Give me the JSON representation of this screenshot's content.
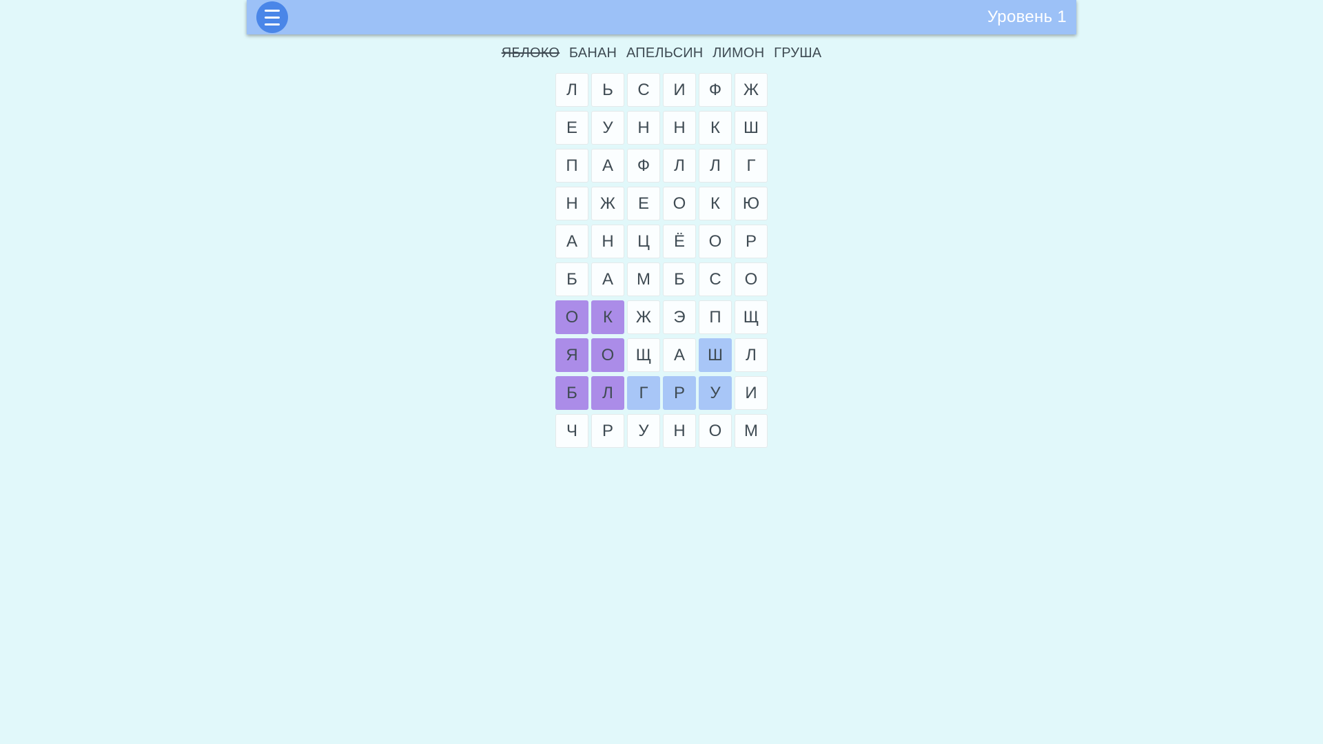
{
  "header": {
    "title": "Уровень 1",
    "menu_icon": "hamburger-icon"
  },
  "word_list": [
    {
      "text": "ЯБЛОКО",
      "found": true
    },
    {
      "text": "БАНАН",
      "found": false
    },
    {
      "text": "АПЕЛЬСИН",
      "found": false
    },
    {
      "text": "ЛИМОН",
      "found": false
    },
    {
      "text": "ГРУША",
      "found": false
    }
  ],
  "grid": {
    "rows": 10,
    "cols": 6,
    "cells": [
      [
        "Л",
        "Ь",
        "С",
        "И",
        "Ф",
        "Ж"
      ],
      [
        "Е",
        "У",
        "Н",
        "Н",
        "К",
        "Ш"
      ],
      [
        "П",
        "А",
        "Ф",
        "Л",
        "Л",
        "Г"
      ],
      [
        "Н",
        "Ж",
        "Е",
        "О",
        "К",
        "Ю"
      ],
      [
        "А",
        "Н",
        "Ц",
        "Ё",
        "О",
        "Р"
      ],
      [
        "Б",
        "А",
        "М",
        "Б",
        "С",
        "О"
      ],
      [
        "О",
        "К",
        "Ж",
        "Э",
        "П",
        "Щ"
      ],
      [
        "Я",
        "О",
        "Щ",
        "А",
        "Ш",
        "Л"
      ],
      [
        "Б",
        "Л",
        "Г",
        "Р",
        "У",
        "И"
      ],
      [
        "Ч",
        "Р",
        "У",
        "Н",
        "О",
        "М"
      ]
    ],
    "found_cells": [
      [
        6,
        0
      ],
      [
        6,
        1
      ],
      [
        7,
        0
      ],
      [
        7,
        1
      ],
      [
        8,
        0
      ],
      [
        8,
        1
      ]
    ],
    "selected_cells": [
      [
        7,
        4
      ],
      [
        8,
        2
      ],
      [
        8,
        3
      ],
      [
        8,
        4
      ]
    ]
  },
  "colors": {
    "background": "#e1f8fa",
    "header": "#9cc1f7",
    "menu_button": "#4a86e8",
    "cell_background": "#fbfeff",
    "cell_border": "#e4e9ea",
    "found_highlight": "#ab8ce8",
    "selected_highlight": "#a8c6f7",
    "letter_text": "#3f4b53",
    "title_text": "#ffffff"
  }
}
